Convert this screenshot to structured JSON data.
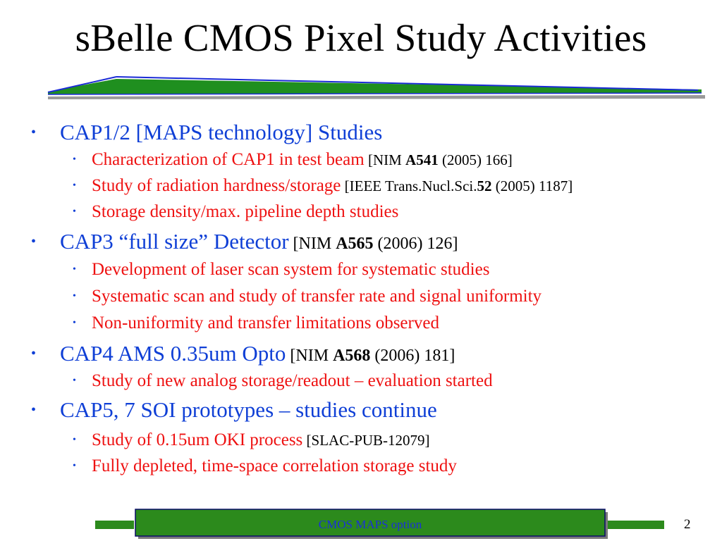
{
  "slide": {
    "title": "sBelle CMOS Pixel Study Activities",
    "page_number": "2",
    "footer": "CMOS MAPS option",
    "colors": {
      "main_text": "#0f3fd6",
      "sub_text": "#ee1111",
      "reference_text": "#000000",
      "rule_green": "#1f8f1f",
      "rule_blue": "#1a2bd6",
      "footer_fill": "#2c8a1c"
    }
  },
  "items": [
    {
      "text": "CAP1/2 [MAPS technology] Studies",
      "subs": [
        {
          "text": "Characterization of CAP1 in test beam",
          "ref_pre": " [NIM ",
          "ref_bold": "A541",
          "ref_post": " (2005) 166]"
        },
        {
          "text": "Study of radiation hardness/storage",
          "ref_pre": " [IEEE Trans.Nucl.Sci.",
          "ref_bold": "52",
          "ref_post": " (2005) 1187]"
        },
        {
          "text": "Storage density/max. pipeline depth studies"
        }
      ]
    },
    {
      "text": "CAP3 “full size” Detector",
      "ref_pre": "  [NIM ",
      "ref_bold": "A565",
      "ref_post": " (2006) 126]",
      "subs": [
        {
          "text": "Development of laser scan system for systematic studies"
        },
        {
          "text": "Systematic scan and study of transfer rate and signal uniformity"
        },
        {
          "text": "Non-uniformity and transfer limitations observed"
        }
      ]
    },
    {
      "text": "CAP4 AMS 0.35um Opto",
      "ref_pre": " [NIM ",
      "ref_bold": "A568",
      "ref_post": " (2006) 181]",
      "subs": [
        {
          "text": "Study of new analog storage/readout – evaluation started"
        }
      ]
    },
    {
      "text": "CAP5, 7 SOI prototypes – studies continue",
      "subs": [
        {
          "text": "Study of 0.15um OKI process",
          "ref_pre": " [SLAC-PUB-12079]"
        },
        {
          "text": "Fully depleted, time-space correlation storage study"
        }
      ]
    }
  ]
}
